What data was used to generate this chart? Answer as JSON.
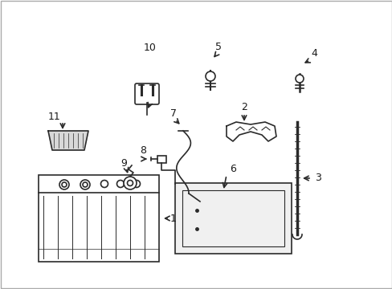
{
  "background_color": "#ffffff",
  "line_color": "#2a2a2a",
  "text_color": "#1a1a1a"
}
